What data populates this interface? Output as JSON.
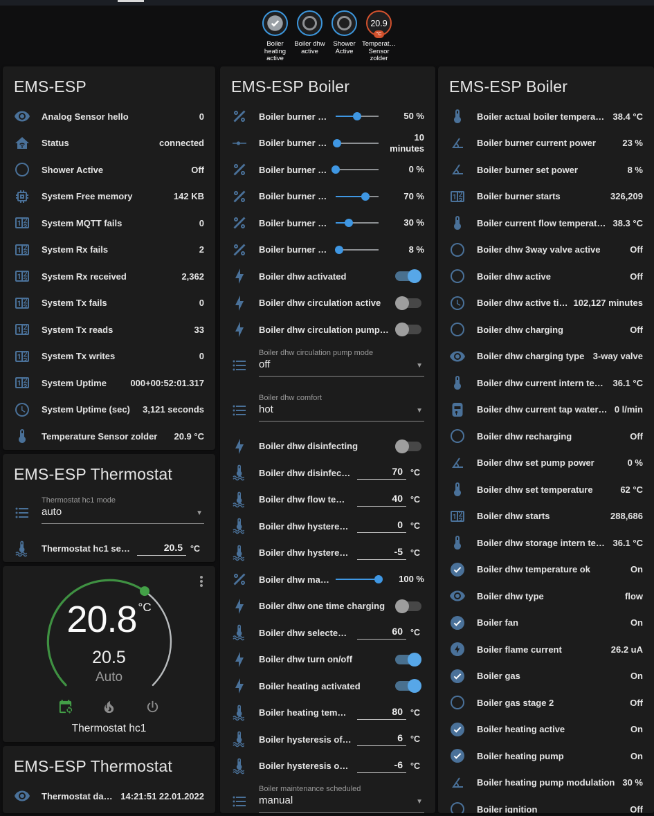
{
  "colors": {
    "page_bg": "#0f0f10",
    "card_bg": "#1c1c1c",
    "icon_blue": "#4a7199",
    "slider_blue": "#3f97e3",
    "toggle_on": "#57a7e8",
    "badge_ring_blue": "#3c96dc",
    "badge_ring_orange": "#d2512d",
    "dial_green": "#43a047",
    "text": "#ececec",
    "secondary_text": "#9a9a9a"
  },
  "header": {
    "badges": [
      {
        "type": "check",
        "icon": "check-circle",
        "label": "Boiler heating active"
      },
      {
        "type": "circle",
        "label": "Boiler dhw active"
      },
      {
        "type": "circle",
        "label": "Shower Active"
      },
      {
        "type": "value",
        "value": "20.9",
        "unit": "°C",
        "label": "Temperat… Sensor zolder"
      }
    ]
  },
  "left": {
    "card1": {
      "title": "EMS-ESP",
      "rows": [
        {
          "type": "sensor",
          "icon": "eye",
          "name": "Analog Sensor hello",
          "value": "0"
        },
        {
          "type": "sensor",
          "icon": "home",
          "name": "Status",
          "value": "connected"
        },
        {
          "type": "sensor",
          "icon": "circle-outline",
          "name": "Shower Active",
          "value": "Off"
        },
        {
          "type": "sensor",
          "icon": "memory",
          "name": "System Free memory",
          "value": "142 KB"
        },
        {
          "type": "sensor",
          "icon": "counter",
          "name": "System MQTT fails",
          "value": "0"
        },
        {
          "type": "sensor",
          "icon": "counter",
          "name": "System Rx fails",
          "value": "2"
        },
        {
          "type": "sensor",
          "icon": "counter",
          "name": "System Rx received",
          "value": "2,362"
        },
        {
          "type": "sensor",
          "icon": "counter",
          "name": "System Tx fails",
          "value": "0"
        },
        {
          "type": "sensor",
          "icon": "counter",
          "name": "System Tx reads",
          "value": "33"
        },
        {
          "type": "sensor",
          "icon": "counter",
          "name": "System Tx writes",
          "value": "0"
        },
        {
          "type": "sensor",
          "icon": "counter",
          "name": "System Uptime",
          "value": "000+00:52:01.317"
        },
        {
          "type": "sensor",
          "icon": "clock-outline",
          "name": "System Uptime (sec)",
          "value": "3,121 seconds"
        },
        {
          "type": "sensor",
          "icon": "thermometer",
          "name": "Temperature Sensor zolder",
          "value": "20.9 °C"
        }
      ]
    },
    "card2": {
      "title": "EMS-ESP Thermostat",
      "rows": [
        {
          "type": "select",
          "icon": "format-list-bulleted",
          "label": "Thermostat hc1 mode",
          "value": "auto"
        },
        {
          "type": "number",
          "icon": "coolant-temperature",
          "name": "Thermostat hc1 se…",
          "value": "20.5",
          "unit": "°C"
        }
      ]
    },
    "dial": {
      "current": "20.8",
      "unit": "°C",
      "target": "20.5",
      "mode": "Auto",
      "title": "Thermostat hc1",
      "mode_icons": [
        {
          "icon": "calendar-sync",
          "active": true
        },
        {
          "icon": "fire",
          "active": false
        },
        {
          "icon": "power",
          "active": false
        }
      ]
    },
    "card4": {
      "title": "EMS-ESP Thermostat",
      "rows": [
        {
          "type": "sensor",
          "icon": "eye",
          "name": "Thermostat date/time",
          "value": "14:21:51 22.01.2022"
        }
      ]
    }
  },
  "middle": {
    "card": {
      "title": "EMS-ESP Boiler",
      "rows": [
        {
          "type": "slider",
          "icon": "percent",
          "name": "Boiler burner max po…",
          "pct": 50,
          "value": "50 %"
        },
        {
          "type": "slider",
          "icon": "ray-vertex",
          "name": "Boiler burner min p…",
          "pct": 4,
          "value": "10 minutes"
        },
        {
          "type": "slider",
          "icon": "percent",
          "name": "Boiler burner min po…",
          "pct": 0,
          "value": "0 %"
        },
        {
          "type": "slider",
          "icon": "percent",
          "name": "Boiler burner pump …",
          "pct": 70,
          "value": "70 %"
        },
        {
          "type": "slider",
          "icon": "percent",
          "name": "Boiler burner pump …",
          "pct": 30,
          "value": "30 %"
        },
        {
          "type": "slider",
          "icon": "percent",
          "name": "Boiler burner selecte…",
          "pct": 8,
          "value": "8 %"
        },
        {
          "type": "toggle",
          "icon": "lightning-bolt",
          "name": "Boiler dhw activated",
          "on": true
        },
        {
          "type": "toggle",
          "icon": "lightning-bolt",
          "name": "Boiler dhw circulation active",
          "on": false
        },
        {
          "type": "toggle",
          "icon": "lightning-bolt",
          "name": "Boiler dhw circulation pump available",
          "on": false
        },
        {
          "type": "select",
          "icon": "format-list-bulleted",
          "label": "Boiler dhw circulation pump mode",
          "value": "off"
        },
        {
          "type": "select",
          "icon": "format-list-bulleted",
          "label": "Boiler dhw comfort",
          "value": "hot"
        },
        {
          "type": "toggle",
          "icon": "lightning-bolt",
          "name": "Boiler dhw disinfecting",
          "on": false
        },
        {
          "type": "number",
          "icon": "coolant-temperature",
          "name": "Boiler dhw disinfecti…",
          "value": "70",
          "unit": "°C"
        },
        {
          "type": "number",
          "icon": "coolant-temperature",
          "name": "Boiler dhw flow tem…",
          "value": "40",
          "unit": "°C"
        },
        {
          "type": "number",
          "icon": "coolant-temperature",
          "name": "Boiler dhw hysteresi…",
          "value": "0",
          "unit": "°C"
        },
        {
          "type": "number",
          "icon": "coolant-temperature",
          "name": "Boiler dhw hysteresi…",
          "value": "-5",
          "unit": "°C"
        },
        {
          "type": "slider",
          "icon": "percent",
          "name": "Boiler dhw max power",
          "pct": 100,
          "value": "100 %"
        },
        {
          "type": "toggle",
          "icon": "lightning-bolt",
          "name": "Boiler dhw one time charging",
          "on": false
        },
        {
          "type": "number",
          "icon": "coolant-temperature",
          "name": "Boiler dhw selected …",
          "value": "60",
          "unit": "°C"
        },
        {
          "type": "toggle",
          "icon": "lightning-bolt",
          "name": "Boiler dhw turn on/off",
          "on": true
        },
        {
          "type": "toggle",
          "icon": "lightning-bolt",
          "name": "Boiler heating activated",
          "on": true
        },
        {
          "type": "number",
          "icon": "coolant-temperature",
          "name": "Boiler heating temp…",
          "value": "80",
          "unit": "°C"
        },
        {
          "type": "number",
          "icon": "coolant-temperature",
          "name": "Boiler hysteresis off…",
          "value": "6",
          "unit": "°C"
        },
        {
          "type": "number",
          "icon": "coolant-temperature",
          "name": "Boiler hysteresis on…",
          "value": "-6",
          "unit": "°C"
        },
        {
          "type": "select",
          "icon": "format-list-bulleted",
          "label": "Boiler maintenance scheduled",
          "value": "manual"
        }
      ]
    }
  },
  "right": {
    "card": {
      "title": "EMS-ESP Boiler",
      "rows": [
        {
          "type": "sensor",
          "icon": "thermometer",
          "name": "Boiler actual boiler temperature",
          "value": "38.4 °C"
        },
        {
          "type": "sensor",
          "icon": "angle-acute",
          "name": "Boiler burner current power",
          "value": "23 %"
        },
        {
          "type": "sensor",
          "icon": "angle-acute",
          "name": "Boiler burner set power",
          "value": "8 %"
        },
        {
          "type": "sensor",
          "icon": "counter",
          "name": "Boiler burner starts",
          "value": "326,209"
        },
        {
          "type": "sensor",
          "icon": "thermometer",
          "name": "Boiler current flow temperature",
          "value": "38.3 °C"
        },
        {
          "type": "sensor",
          "icon": "circle-outline",
          "name": "Boiler dhw 3way valve active",
          "value": "Off"
        },
        {
          "type": "sensor",
          "icon": "circle-outline",
          "name": "Boiler dhw active",
          "value": "Off"
        },
        {
          "type": "sensor",
          "icon": "clock-outline",
          "name": "Boiler dhw active time",
          "value": "102,127 minutes"
        },
        {
          "type": "sensor",
          "icon": "circle-outline",
          "name": "Boiler dhw charging",
          "value": "Off"
        },
        {
          "type": "sensor",
          "icon": "eye",
          "name": "Boiler dhw charging type",
          "value": "3-way valve"
        },
        {
          "type": "sensor",
          "icon": "thermometer",
          "name": "Boiler dhw current intern temperature",
          "value": "36.1 °C"
        },
        {
          "type": "sensor",
          "icon": "water-boiler",
          "name": "Boiler dhw current tap water flow",
          "value": "0 l/min"
        },
        {
          "type": "sensor",
          "icon": "circle-outline",
          "name": "Boiler dhw recharging",
          "value": "Off"
        },
        {
          "type": "sensor",
          "icon": "angle-acute",
          "name": "Boiler dhw set pump power",
          "value": "0 %"
        },
        {
          "type": "sensor",
          "icon": "thermometer",
          "name": "Boiler dhw set temperature",
          "value": "62 °C"
        },
        {
          "type": "sensor",
          "icon": "counter",
          "name": "Boiler dhw starts",
          "value": "288,686"
        },
        {
          "type": "sensor",
          "icon": "thermometer",
          "name": "Boiler dhw storage intern temperature",
          "value": "36.1 °C"
        },
        {
          "type": "sensor",
          "icon": "check-circle",
          "name": "Boiler dhw temperature ok",
          "value": "On"
        },
        {
          "type": "sensor",
          "icon": "eye",
          "name": "Boiler dhw type",
          "value": "flow"
        },
        {
          "type": "sensor",
          "icon": "check-circle",
          "name": "Boiler fan",
          "value": "On"
        },
        {
          "type": "sensor",
          "icon": "flash-circle",
          "name": "Boiler flame current",
          "value": "26.2 uA"
        },
        {
          "type": "sensor",
          "icon": "check-circle",
          "name": "Boiler gas",
          "value": "On"
        },
        {
          "type": "sensor",
          "icon": "circle-outline",
          "name": "Boiler gas stage 2",
          "value": "Off"
        },
        {
          "type": "sensor",
          "icon": "check-circle",
          "name": "Boiler heating active",
          "value": "On"
        },
        {
          "type": "sensor",
          "icon": "check-circle",
          "name": "Boiler heating pump",
          "value": "On"
        },
        {
          "type": "sensor",
          "icon": "angle-acute",
          "name": "Boiler heating pump modulation",
          "value": "30 %"
        },
        {
          "type": "sensor",
          "icon": "circle-outline",
          "name": "Boiler ignition",
          "value": "Off"
        }
      ]
    }
  }
}
